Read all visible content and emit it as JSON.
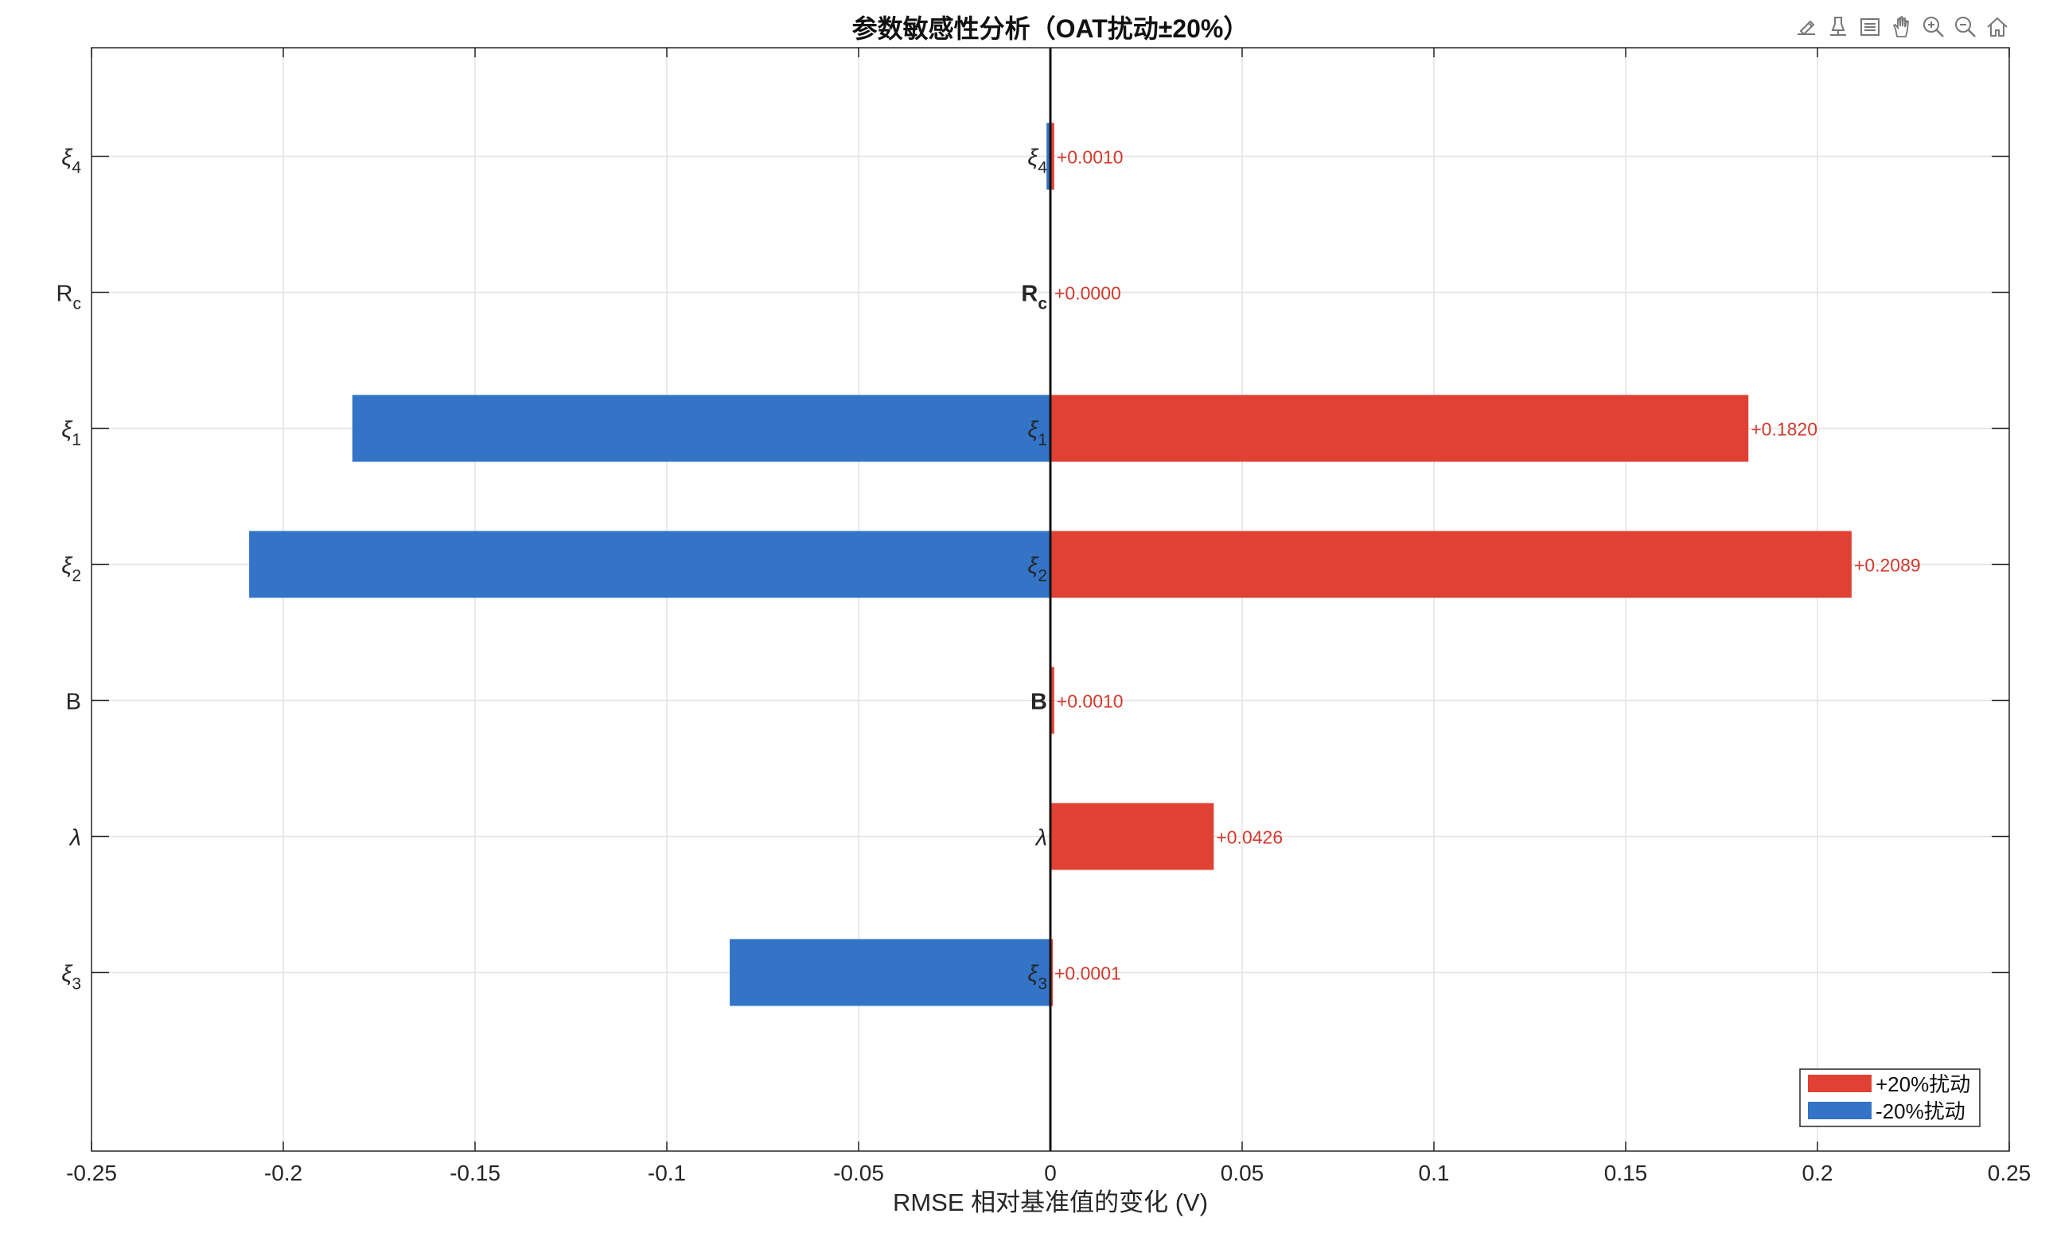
{
  "chart_data": {
    "type": "bar",
    "orientation": "horizontal",
    "title": "参数敏感性分析（OAT扰动±20%）",
    "xlabel": "RMSE 相对基准值的变化 (V)",
    "ylabel": "",
    "xlim": [
      -0.25,
      0.25
    ],
    "xticks": [
      "-0.25",
      "-0.2",
      "-0.15",
      "-0.1",
      "-0.05",
      "0",
      "0.05",
      "0.1",
      "0.15",
      "0.2",
      "0.25"
    ],
    "xtick_values": [
      -0.25,
      -0.2,
      -0.15,
      -0.1,
      -0.05,
      0,
      0.05,
      0.1,
      0.15,
      0.2,
      0.25
    ],
    "categories": [
      {
        "base": "ξ",
        "sub": "4",
        "inner_bold": false
      },
      {
        "base": "R",
        "sub": "c",
        "inner_bold": true
      },
      {
        "base": "ξ",
        "sub": "1",
        "inner_bold": false
      },
      {
        "base": "ξ",
        "sub": "2",
        "inner_bold": false
      },
      {
        "base": "B",
        "sub": "",
        "inner_bold": true
      },
      {
        "base": "λ",
        "sub": "",
        "inner_bold": false
      },
      {
        "base": "ξ",
        "sub": "3",
        "inner_bold": false
      }
    ],
    "series": [
      {
        "name": "+20%扰动",
        "color": "#E04134",
        "values": [
          0.001,
          0.0,
          0.182,
          0.2089,
          0.001,
          0.0426,
          0.0001
        ]
      },
      {
        "name": "-20%扰动",
        "color": "#3374C7",
        "values": [
          -0.001,
          0.0,
          -0.182,
          -0.2089,
          0.0,
          0.0,
          -0.0836
        ]
      }
    ],
    "data_labels": [
      "+0.0010",
      "+0.0000",
      "+0.1820",
      "+0.2089",
      "+0.0010",
      "+0.0426",
      "+0.0001"
    ],
    "grid": true,
    "legend_position": "bottom-right"
  },
  "toolbar": [
    "brush-icon",
    "datatip-icon",
    "legend-toggle-icon",
    "pan-hand-icon",
    "zoom-in-icon",
    "zoom-out-icon",
    "home-icon"
  ]
}
